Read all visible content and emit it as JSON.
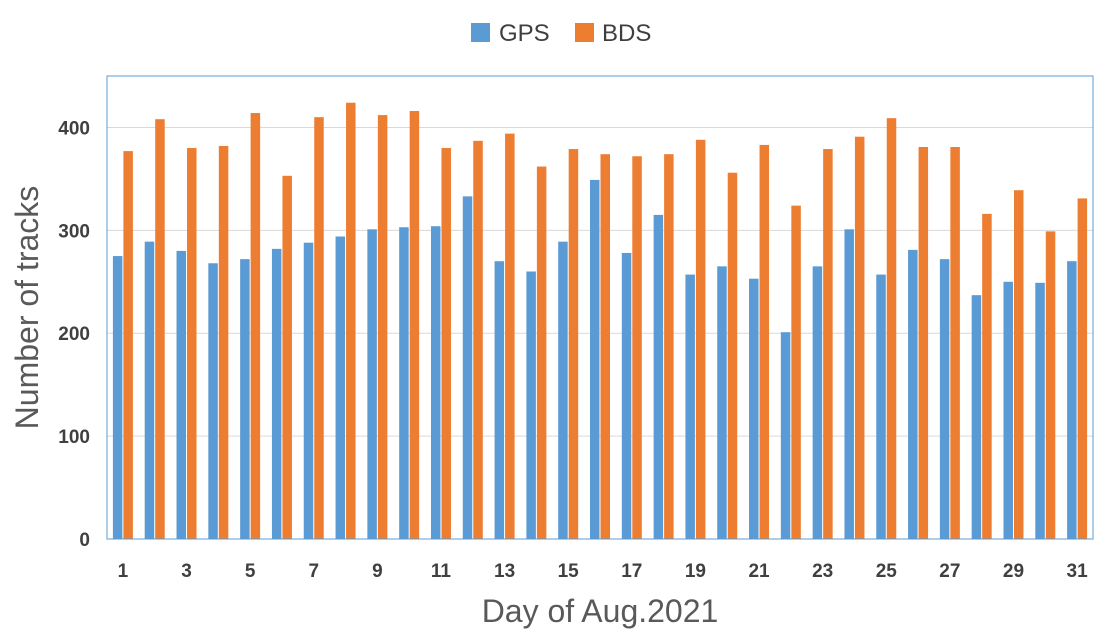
{
  "chart_data": {
    "type": "bar",
    "title": "",
    "xlabel": "Day of Aug.2021",
    "ylabel": "Number of tracks",
    "ylim": [
      0,
      450
    ],
    "yticks": [
      0,
      100,
      200,
      300,
      400
    ],
    "grid": true,
    "legend_position": "top-center",
    "categories": [
      "1",
      "2",
      "3",
      "4",
      "5",
      "6",
      "7",
      "8",
      "9",
      "10",
      "11",
      "12",
      "13",
      "14",
      "15",
      "16",
      "17",
      "18",
      "19",
      "20",
      "21",
      "22",
      "23",
      "24",
      "25",
      "26",
      "27",
      "28",
      "29",
      "30",
      "31"
    ],
    "x_tick_labels": [
      "1",
      "3",
      "5",
      "7",
      "9",
      "11",
      "13",
      "15",
      "17",
      "19",
      "21",
      "23",
      "25",
      "27",
      "29",
      "31"
    ],
    "series": [
      {
        "name": "GPS",
        "color": "#5b9bd5",
        "values": [
          275,
          289,
          280,
          268,
          272,
          282,
          288,
          294,
          301,
          303,
          304,
          333,
          270,
          260,
          289,
          349,
          278,
          315,
          257,
          265,
          253,
          201,
          265,
          301,
          257,
          281,
          272,
          237,
          250,
          249,
          270
        ]
      },
      {
        "name": "BDS",
        "color": "#ed7d31",
        "values": [
          377,
          408,
          380,
          382,
          414,
          353,
          410,
          424,
          412,
          416,
          380,
          387,
          394,
          362,
          379,
          374,
          372,
          374,
          388,
          356,
          383,
          324,
          379,
          391,
          409,
          381,
          381,
          316,
          339,
          299,
          331
        ]
      }
    ],
    "colors": {
      "plot_border": "#5b9bd5",
      "gridline": "#d9d9d9"
    }
  }
}
